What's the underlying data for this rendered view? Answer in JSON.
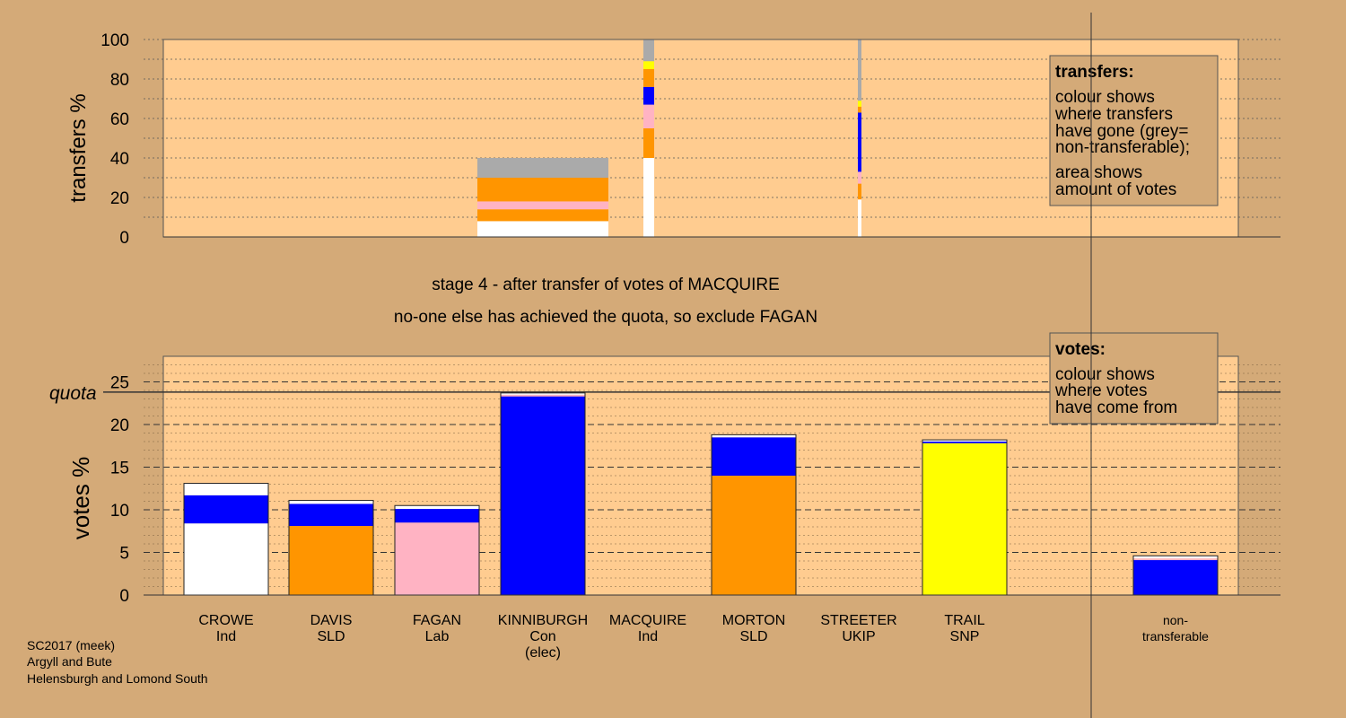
{
  "caption": {
    "stage": "stage 4 - after transfer of votes of MACQUIRE",
    "note": "no-one else has achieved the quota, so exclude FAGAN"
  },
  "footer": [
    "SC2017 (meek)",
    "Argyll and Bute",
    "Helensburgh and Lomond South"
  ],
  "palette": {
    "background": "#d4aa78",
    "plot": "#ffcc90",
    "Ind": "#ffffff",
    "SLD": "#ff9500",
    "Lab": "#ffb3c3",
    "Con": "#0000ff",
    "SNP": "#ffff00",
    "UKIP": "#a020f0",
    "nontransferable": "#aaaaaa"
  },
  "legend_transfers": {
    "title": "transfers:",
    "lines1": [
      "colour shows",
      "where transfers",
      "have gone (grey=",
      "non-transferable);"
    ],
    "lines2": [
      "area shows",
      "amount of votes"
    ]
  },
  "legend_votes": {
    "title": "votes:",
    "lines": [
      "colour shows",
      "where votes",
      "have come from"
    ]
  },
  "chart_data": [
    {
      "type": "bar",
      "subtype": "stacked-transfer",
      "ylabel": "transfers %",
      "ylim": [
        0,
        100
      ],
      "yticks": [
        0,
        20,
        40,
        60,
        80,
        100
      ],
      "grid": true,
      "columns": [
        {
          "name": "FAGAN",
          "segments": [
            {
              "from": 0,
              "to": 8,
              "color": "Ind"
            },
            {
              "from": 8,
              "to": 14,
              "color": "SLD"
            },
            {
              "from": 14,
              "to": 18,
              "color": "Lab"
            },
            {
              "from": 18,
              "to": 30,
              "color": "SLD"
            },
            {
              "from": 30,
              "to": 40,
              "color": "nontransferable"
            }
          ]
        },
        {
          "name": "KINNIBURGH",
          "segments": [
            {
              "from": 0,
              "to": 40,
              "color": "Ind"
            },
            {
              "from": 40,
              "to": 55,
              "color": "SLD"
            },
            {
              "from": 55,
              "to": 67,
              "color": "Lab"
            },
            {
              "from": 67,
              "to": 76,
              "color": "Con"
            },
            {
              "from": 76,
              "to": 85,
              "color": "SLD"
            },
            {
              "from": 85,
              "to": 89,
              "color": "SNP"
            },
            {
              "from": 89,
              "to": 100,
              "color": "nontransferable"
            }
          ]
        },
        {
          "name": "MORTON",
          "segments": [
            {
              "from": 0,
              "to": 19,
              "color": "Ind"
            },
            {
              "from": 19,
              "to": 27,
              "color": "SLD"
            },
            {
              "from": 27,
              "to": 33,
              "color": "Lab"
            },
            {
              "from": 33,
              "to": 63,
              "color": "Con"
            },
            {
              "from": 63,
              "to": 66,
              "color": "SLD"
            },
            {
              "from": 66,
              "to": 69,
              "color": "SNP"
            },
            {
              "from": 69,
              "to": 100,
              "color": "nontransferable"
            }
          ]
        }
      ]
    },
    {
      "type": "bar",
      "subtype": "stacked",
      "ylabel": "votes %",
      "ylim": [
        0,
        28
      ],
      "yticks": [
        0,
        5,
        10,
        15,
        20,
        25
      ],
      "grid": true,
      "quota": 23.8,
      "quota_label": "quota",
      "categories": [
        {
          "name": "CROWE",
          "party": "Ind"
        },
        {
          "name": "DAVIS",
          "party": "SLD"
        },
        {
          "name": "FAGAN",
          "party": "Lab"
        },
        {
          "name": "KINNIBURGH",
          "party": "Con",
          "note": "(elec)"
        },
        {
          "name": "MACQUIRE",
          "party": "Ind"
        },
        {
          "name": "MORTON",
          "party": "SLD"
        },
        {
          "name": "STREETER",
          "party": "UKIP"
        },
        {
          "name": "TRAIL",
          "party": "SNP"
        },
        {
          "name": "non-",
          "party": "transferable"
        }
      ],
      "stacks": [
        [
          {
            "v": 8.4,
            "color": "Ind"
          },
          {
            "v": 3.3,
            "color": "Con"
          },
          {
            "v": 1.4,
            "color": "Ind"
          }
        ],
        [
          {
            "v": 8.1,
            "color": "SLD"
          },
          {
            "v": 2.6,
            "color": "Con"
          },
          {
            "v": 0.4,
            "color": "Ind"
          }
        ],
        [
          {
            "v": 8.5,
            "color": "Lab"
          },
          {
            "v": 1.6,
            "color": "Con"
          },
          {
            "v": 0.4,
            "color": "Ind"
          }
        ],
        [
          {
            "v": 23.3,
            "color": "Con"
          },
          {
            "v": 0.2,
            "color": "Lab"
          },
          {
            "v": 0.2,
            "color": "Ind"
          }
        ],
        [],
        [
          {
            "v": 14.0,
            "color": "SLD"
          },
          {
            "v": 4.5,
            "color": "Con"
          },
          {
            "v": 0.3,
            "color": "Ind"
          }
        ],
        [],
        [
          {
            "v": 17.8,
            "color": "SNP"
          },
          {
            "v": 0.2,
            "color": "Con"
          },
          {
            "v": 0.2,
            "color": "Ind"
          }
        ],
        [
          {
            "v": 4.1,
            "color": "Con"
          },
          {
            "v": 0.2,
            "color": "Lab"
          },
          {
            "v": 0.3,
            "color": "Ind"
          }
        ]
      ]
    }
  ]
}
